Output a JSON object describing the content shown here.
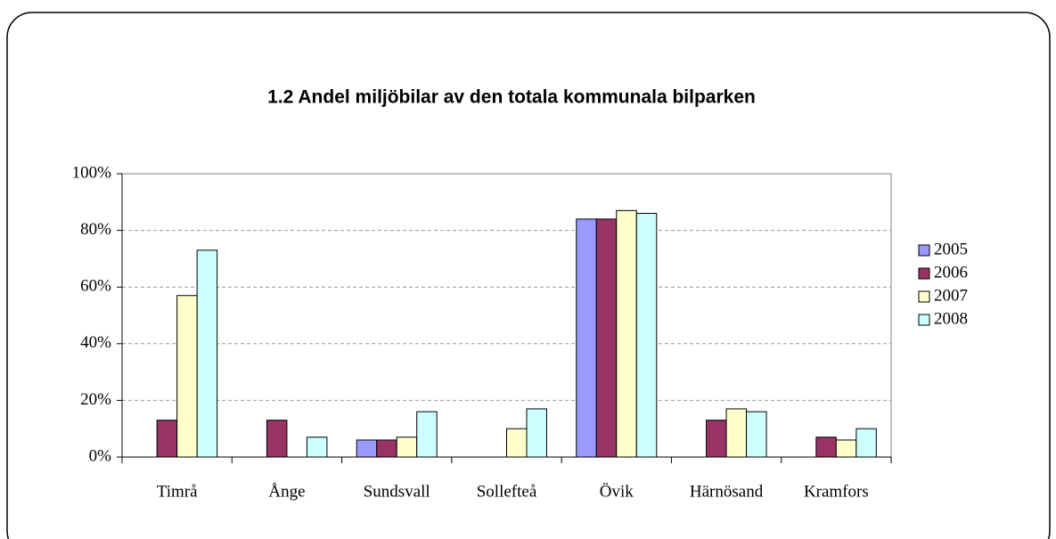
{
  "chart_data": {
    "type": "bar",
    "title": "1.2 Andel miljöbilar av den totala kommunala bilparken",
    "categories": [
      "Timrå",
      "Ånge",
      "Sundsvall",
      "Sollefteå",
      "Övik",
      "Härnösand",
      "Kramfors"
    ],
    "series": [
      {
        "name": "2005",
        "color": "#9999ff",
        "values": [
          null,
          null,
          6,
          null,
          84,
          null,
          null
        ]
      },
      {
        "name": "2006",
        "color": "#993366",
        "values": [
          13,
          13,
          6,
          null,
          84,
          13,
          7
        ]
      },
      {
        "name": "2007",
        "color": "#ffffcc",
        "values": [
          57,
          null,
          7,
          10,
          87,
          17,
          6
        ]
      },
      {
        "name": "2008",
        "color": "#ccffff",
        "values": [
          73,
          7,
          16,
          17,
          86,
          16,
          10
        ]
      }
    ],
    "ylim": [
      0,
      100
    ],
    "yticks": [
      {
        "value": 0,
        "label": "0%"
      },
      {
        "value": 20,
        "label": "20%"
      },
      {
        "value": 40,
        "label": "40%"
      },
      {
        "value": 60,
        "label": "60%"
      },
      {
        "value": 80,
        "label": "80%"
      },
      {
        "value": 100,
        "label": "100%"
      }
    ],
    "grid": true,
    "legend": "right"
  }
}
